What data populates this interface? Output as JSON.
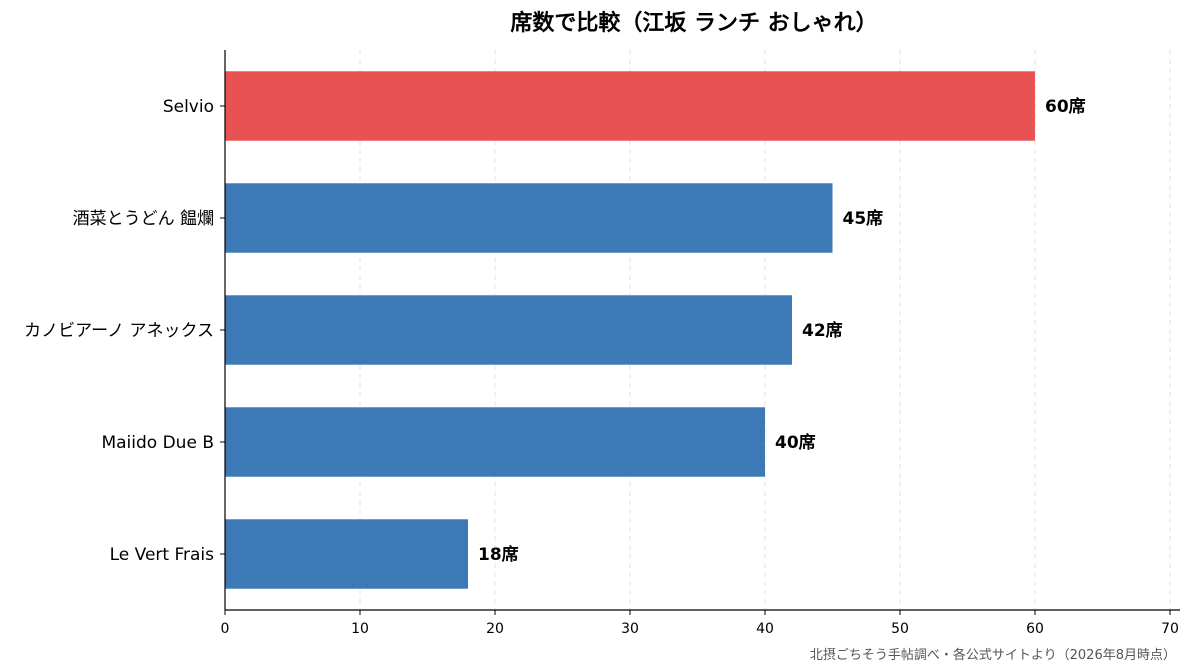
{
  "chart_data": {
    "type": "bar",
    "orientation": "horizontal",
    "title": "席数で比較（江坂 ランチ おしゃれ）",
    "xlabel": "",
    "ylabel": "",
    "categories": [
      "Selvio",
      "酒菜とうどん 饂爛",
      "カノビアーノ アネックス",
      "Maiido Due B",
      "Le Vert Frais"
    ],
    "values": [
      60,
      45,
      42,
      40,
      18
    ],
    "data_labels": [
      "60席",
      "45席",
      "42席",
      "40席",
      "18席"
    ],
    "highlight_color": "#e85252",
    "bar_color": "#3d79b6",
    "highlight_index": 0,
    "xlim": [
      0,
      70
    ],
    "xticks": [
      0,
      10,
      20,
      30,
      40,
      50,
      60,
      70
    ],
    "grid": "vertical-dashed",
    "source_note": "北摂ごちそう手帖調べ・各公式サイトより（2026年8月時点）"
  }
}
